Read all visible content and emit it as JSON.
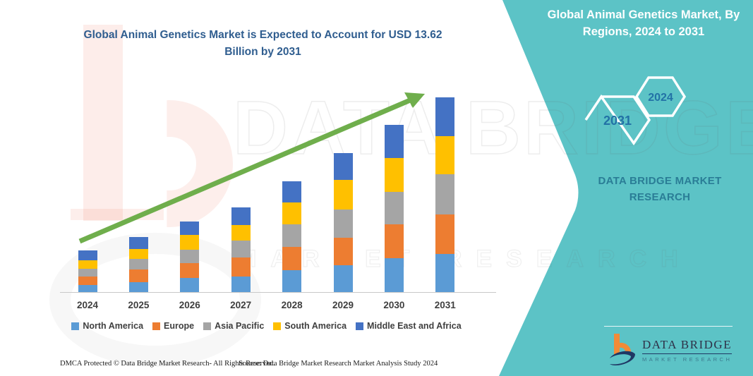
{
  "header": {
    "title": "Global Animal Genetics Market is Expected to Account for USD 13.62 Billion by 2031"
  },
  "side_panel": {
    "title": "Global Animal Genetics Market, By Regions, 2024 to 2031",
    "hexagon_large": "2031",
    "hexagon_small": "2024",
    "brand_text": "DATA BRIDGE MARKET RESEARCH",
    "accent_color": "#5CC3C6"
  },
  "watermarks": {
    "big_text": "DATA BRIDGE",
    "sub_text": "MARKET RESEARCH"
  },
  "chart_data": {
    "type": "bar",
    "stacked": true,
    "title": "Global Animal Genetics Market is Expected to Account for USD 13.62 Billion by 2031",
    "unit": "USD Billion",
    "categories": [
      "2024",
      "2025",
      "2026",
      "2027",
      "2028",
      "2029",
      "2030",
      "2031"
    ],
    "series": [
      {
        "name": "North America",
        "color": "#5B9BD5",
        "values": [
          0.49,
          0.69,
          1.0,
          1.1,
          1.52,
          1.86,
          2.37,
          2.66
        ]
      },
      {
        "name": "Europe",
        "color": "#ED7D31",
        "values": [
          0.58,
          0.87,
          1.02,
          1.3,
          1.64,
          1.92,
          2.35,
          2.75
        ]
      },
      {
        "name": "Asia Pacific",
        "color": "#A5A5A5",
        "values": [
          0.54,
          0.77,
          0.95,
          1.2,
          1.56,
          1.97,
          2.3,
          2.8
        ]
      },
      {
        "name": "South America",
        "color": "#FFC000",
        "values": [
          0.61,
          0.69,
          1.02,
          1.1,
          1.53,
          2.06,
          2.33,
          2.68
        ]
      },
      {
        "name": "Middle East and Africa",
        "color": "#4472C4",
        "values": [
          0.71,
          0.82,
          0.94,
          1.23,
          1.48,
          1.89,
          2.32,
          2.73
        ]
      }
    ],
    "totals": [
      2.93,
      3.84,
      4.93,
      5.93,
      7.73,
      9.7,
      11.67,
      13.62
    ],
    "ylabel": "",
    "y_axis_visible": false,
    "grid": false,
    "legend_position": "bottom",
    "trend_arrow": true,
    "trend_arrow_color": "#6FAE4C"
  },
  "brand_logo": {
    "name": "DATA BRIDGE",
    "tagline": "MARKET RESEARCH"
  },
  "footer": {
    "left": "DMCA Protected © Data Bridge Market Research-  All Rights Reserved.",
    "right": "Source: Data Bridge Market Research  Market Analysis Study 2024"
  }
}
